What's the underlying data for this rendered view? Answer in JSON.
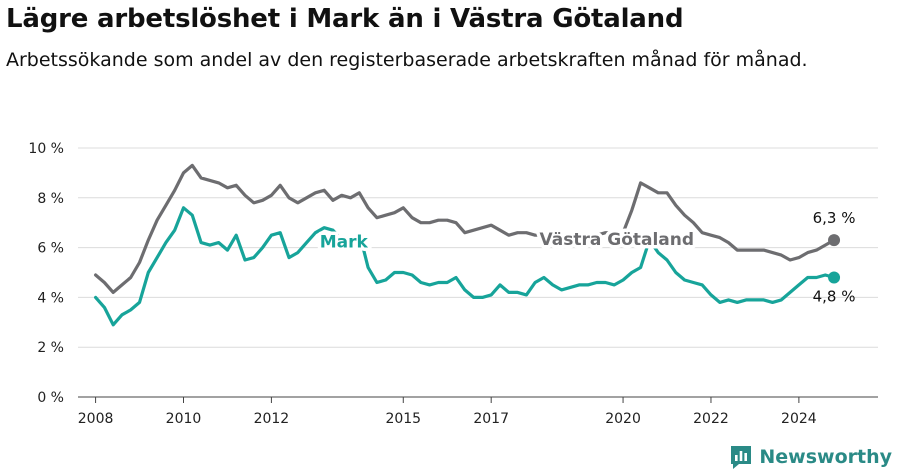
{
  "chart_data": {
    "type": "line",
    "title": "Lägre arbetslöshet i Mark än i Västra Götaland",
    "subtitle": "Arbetssökande som andel av den registerbaserade arbetskraften månad för månad.",
    "ylim": [
      0,
      10
    ],
    "y_ticks": [
      0,
      2,
      4,
      6,
      8,
      10
    ],
    "y_tick_labels": [
      "0 %",
      "2 %",
      "4 %",
      "6 %",
      "8 %",
      "10 %"
    ],
    "xlim": [
      2007.6,
      2025.8
    ],
    "x_ticks": [
      2008,
      2010,
      2012,
      2015,
      2017,
      2020,
      2022,
      2024
    ],
    "x_tick_labels": [
      "2008",
      "2010",
      "2012",
      "2015",
      "2017",
      "2020",
      "2022",
      "2024"
    ],
    "grid": true,
    "series": [
      {
        "name": "Västra Götaland",
        "color": "#6d6d70",
        "end_label": "6,3 %",
        "x": [
          2008.0,
          2008.2,
          2008.4,
          2008.6,
          2008.8,
          2009.0,
          2009.2,
          2009.4,
          2009.6,
          2009.8,
          2010.0,
          2010.2,
          2010.4,
          2010.6,
          2010.8,
          2011.0,
          2011.2,
          2011.4,
          2011.6,
          2011.8,
          2012.0,
          2012.2,
          2012.4,
          2012.6,
          2012.8,
          2013.0,
          2013.2,
          2013.4,
          2013.6,
          2013.8,
          2014.0,
          2014.2,
          2014.4,
          2014.6,
          2014.8,
          2015.0,
          2015.2,
          2015.4,
          2015.6,
          2015.8,
          2016.0,
          2016.2,
          2016.4,
          2016.6,
          2016.8,
          2017.0,
          2017.2,
          2017.4,
          2017.6,
          2017.8,
          2018.0,
          2018.2,
          2018.4,
          2018.6,
          2018.8,
          2019.0,
          2019.2,
          2019.4,
          2019.6,
          2019.8,
          2020.0,
          2020.2,
          2020.4,
          2020.6,
          2020.8,
          2021.0,
          2021.2,
          2021.4,
          2021.6,
          2021.8,
          2022.0,
          2022.2,
          2022.4,
          2022.6,
          2022.8,
          2023.0,
          2023.2,
          2023.4,
          2023.6,
          2023.8,
          2024.0,
          2024.2,
          2024.4,
          2024.6,
          2024.8
        ],
        "values": [
          4.9,
          4.6,
          4.2,
          4.5,
          4.8,
          5.4,
          6.3,
          7.1,
          7.7,
          8.3,
          9.0,
          9.3,
          8.8,
          8.7,
          8.6,
          8.4,
          8.5,
          8.1,
          7.8,
          7.9,
          8.1,
          8.5,
          8.0,
          7.8,
          8.0,
          8.2,
          8.3,
          7.9,
          8.1,
          8.0,
          8.2,
          7.6,
          7.2,
          7.3,
          7.4,
          7.6,
          7.2,
          7.0,
          7.0,
          7.1,
          7.1,
          7.0,
          6.6,
          6.7,
          6.8,
          6.9,
          6.7,
          6.5,
          6.6,
          6.6,
          6.5,
          6.5,
          6.4,
          6.4,
          6.4,
          6.4,
          6.4,
          6.5,
          6.6,
          6.6,
          6.6,
          7.5,
          8.6,
          8.4,
          8.2,
          8.2,
          7.7,
          7.3,
          7.0,
          6.6,
          6.5,
          6.4,
          6.2,
          5.9,
          5.9,
          5.9,
          5.9,
          5.8,
          5.7,
          5.5,
          5.6,
          5.8,
          5.9,
          6.1,
          6.3
        ]
      },
      {
        "name": "Mark",
        "color": "#17a49a",
        "end_label": "4,8 %",
        "x": [
          2008.0,
          2008.2,
          2008.4,
          2008.6,
          2008.8,
          2009.0,
          2009.2,
          2009.4,
          2009.6,
          2009.8,
          2010.0,
          2010.2,
          2010.4,
          2010.6,
          2010.8,
          2011.0,
          2011.2,
          2011.4,
          2011.6,
          2011.8,
          2012.0,
          2012.2,
          2012.4,
          2012.6,
          2012.8,
          2013.0,
          2013.2,
          2013.4,
          2013.6,
          2013.8,
          2014.0,
          2014.2,
          2014.4,
          2014.6,
          2014.8,
          2015.0,
          2015.2,
          2015.4,
          2015.6,
          2015.8,
          2016.0,
          2016.2,
          2016.4,
          2016.6,
          2016.8,
          2017.0,
          2017.2,
          2017.4,
          2017.6,
          2017.8,
          2018.0,
          2018.2,
          2018.4,
          2018.6,
          2018.8,
          2019.0,
          2019.2,
          2019.4,
          2019.6,
          2019.8,
          2020.0,
          2020.2,
          2020.4,
          2020.6,
          2020.8,
          2021.0,
          2021.2,
          2021.4,
          2021.6,
          2021.8,
          2022.0,
          2022.2,
          2022.4,
          2022.6,
          2022.8,
          2023.0,
          2023.2,
          2023.4,
          2023.6,
          2023.8,
          2024.0,
          2024.2,
          2024.4,
          2024.6,
          2024.8
        ],
        "values": [
          4.0,
          3.6,
          2.9,
          3.3,
          3.5,
          3.8,
          5.0,
          5.6,
          6.2,
          6.7,
          7.6,
          7.3,
          6.2,
          6.1,
          6.2,
          5.9,
          6.5,
          5.5,
          5.6,
          6.0,
          6.5,
          6.6,
          5.6,
          5.8,
          6.2,
          6.6,
          6.8,
          6.7,
          6.3,
          6.0,
          6.6,
          5.2,
          4.6,
          4.7,
          5.0,
          5.0,
          4.9,
          4.6,
          4.5,
          4.6,
          4.6,
          4.8,
          4.3,
          4.0,
          4.0,
          4.1,
          4.5,
          4.2,
          4.2,
          4.1,
          4.6,
          4.8,
          4.5,
          4.3,
          4.4,
          4.5,
          4.5,
          4.6,
          4.6,
          4.5,
          4.7,
          5.0,
          5.2,
          6.3,
          5.8,
          5.5,
          5.0,
          4.7,
          4.6,
          4.5,
          4.1,
          3.8,
          3.9,
          3.8,
          3.9,
          3.9,
          3.9,
          3.8,
          3.9,
          4.2,
          4.5,
          4.8,
          4.8,
          4.9,
          4.8
        ]
      }
    ],
    "series_labels": [
      {
        "series": "Mark",
        "x": 2013.1,
        "y": 6.0
      },
      {
        "series": "Västra Götaland",
        "x": 2018.1,
        "y": 6.1
      }
    ]
  },
  "brand": {
    "name": "Newsworthy"
  }
}
